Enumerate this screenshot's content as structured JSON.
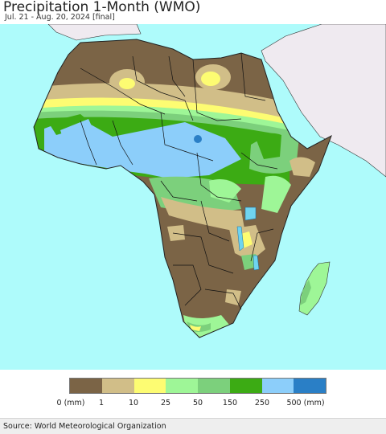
{
  "header": {
    "title": "Precipitation 1-Month (WMO)",
    "subtitle": "Jul. 21 - Aug. 20, 2024 [final]"
  },
  "colors": {
    "ocean": "#aefbfb",
    "non_africa_land": "#efeaf0",
    "lakes": "#6fd4f0",
    "classes": [
      "#7b6446",
      "#d1be88",
      "#fdfc72",
      "#9ef697",
      "#7cd07c",
      "#3cab14",
      "#8ccefa",
      "#2a7fc6"
    ]
  },
  "legend": {
    "labels": [
      "0 (mm)",
      "1",
      "10",
      "25",
      "50",
      "150",
      "250",
      "500 (mm)"
    ]
  },
  "source": "Source: World Meteorological Organization"
}
